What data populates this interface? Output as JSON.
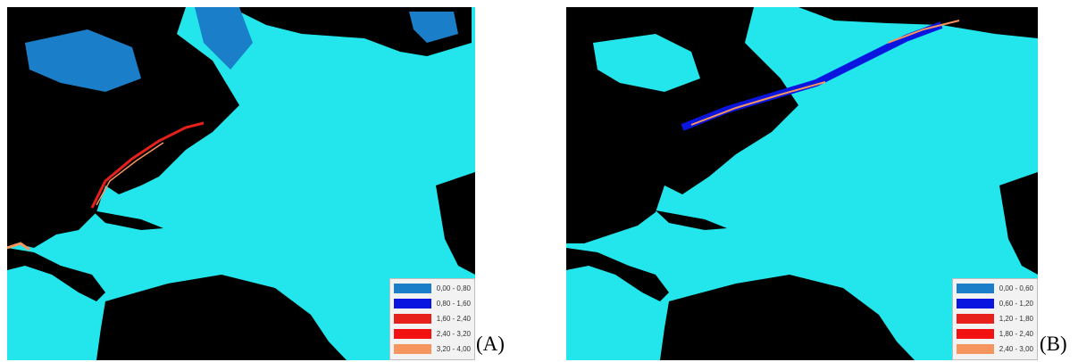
{
  "colors": {
    "ocean": "#22e6ec",
    "land": "#000000",
    "ice": "#1a7fc8"
  },
  "panels": [
    {
      "letter": "(A)",
      "legend": [
        {
          "label": "0,00 - 0,80",
          "color": "#1a7fc8"
        },
        {
          "label": "0,80 - 1,60",
          "color": "#0a16e0"
        },
        {
          "label": "1,60 - 2,40",
          "color": "#e8201c"
        },
        {
          "label": "2,40 - 3,20",
          "color": "#f21212"
        },
        {
          "label": "3,20 - 4,00",
          "color": "#f6955e"
        }
      ]
    },
    {
      "letter": "(B)",
      "legend": [
        {
          "label": "0,00 - 0,60",
          "color": "#1a7fc8"
        },
        {
          "label": "0,60 - 1,20",
          "color": "#0a16e0"
        },
        {
          "label": "1,20 - 1,80",
          "color": "#e8201c"
        },
        {
          "label": "1,80 - 2,40",
          "color": "#f21212"
        },
        {
          "label": "2,40 - 3,00",
          "color": "#f6955e"
        }
      ]
    }
  ]
}
